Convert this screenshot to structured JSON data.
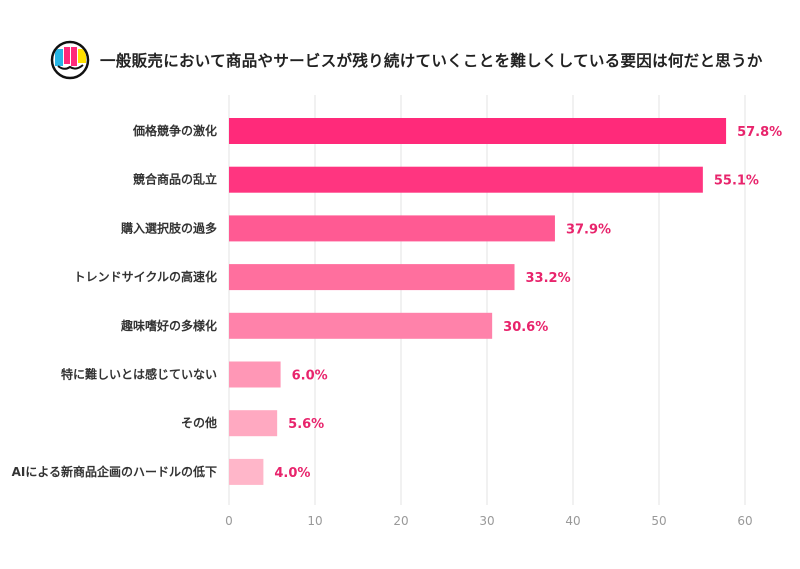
{
  "header": {
    "title": "一般販売において商品やサービスが残り続けていくことを難しくしている要因は何だと思うか"
  },
  "chart_data": {
    "type": "bar",
    "orientation": "horizontal",
    "title": "一般販売において商品やサービスが残り続けていくことを難しくしている要因は何だと思うか",
    "categories": [
      "価格競争の激化",
      "競合商品の乱立",
      "購入選択肢の過多",
      "トレンドサイクルの高速化",
      "趣味嗜好の多様化",
      "特に難しいとは感じていない",
      "その他",
      "AIによる新商品企画のハードルの低下"
    ],
    "values": [
      57.8,
      55.1,
      37.9,
      33.2,
      30.6,
      6.0,
      5.6,
      4.0
    ],
    "value_labels": [
      "57.8%",
      "55.1%",
      "37.9%",
      "33.2%",
      "30.6%",
      "6.0%",
      "5.6%",
      "4.0%"
    ],
    "bar_colors": [
      "#FF2A7A",
      "#FF3580",
      "#FF5A93",
      "#FF6F9E",
      "#FF82AA",
      "#FF97B6",
      "#FFA9C1",
      "#FFB6C9"
    ],
    "label_color": "#E8246C",
    "xlim": [
      0,
      60
    ],
    "xticks": [
      0,
      10,
      20,
      30,
      40,
      50,
      60
    ],
    "xlabel": "",
    "ylabel": "",
    "grid": true
  }
}
